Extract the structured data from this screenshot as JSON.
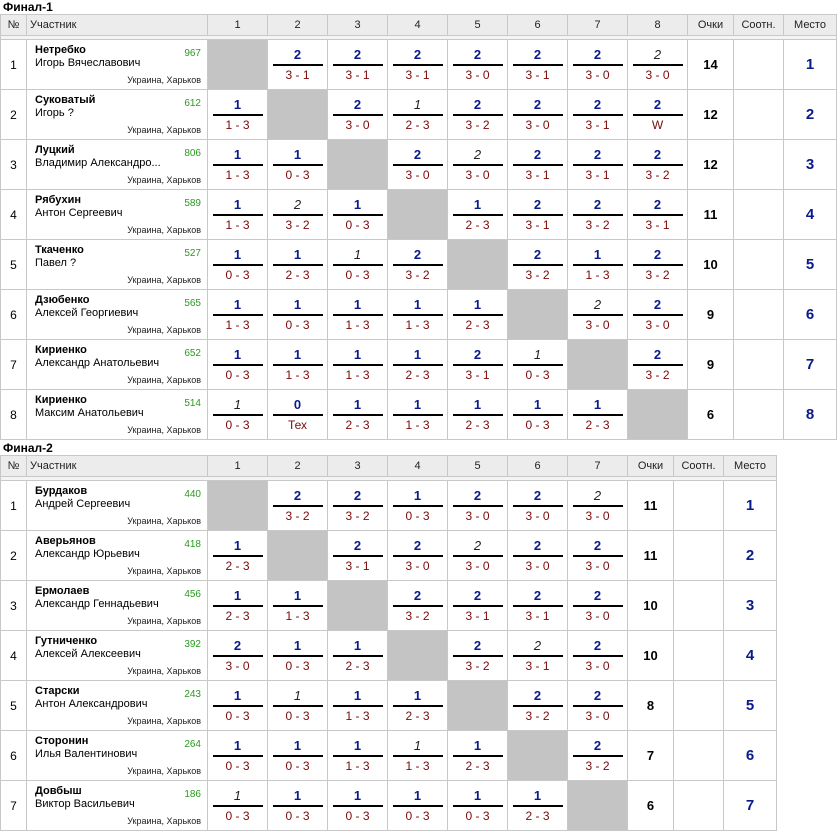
{
  "tables": [
    {
      "title": "Финал-1",
      "headers": {
        "num": "№",
        "player": "Участник",
        "points": "Очки",
        "ratio": "Соотн.",
        "place": "Место",
        "rounds": [
          "1",
          "2",
          "3",
          "4",
          "5",
          "6",
          "7",
          "8"
        ]
      },
      "players": [
        {
          "num": "1",
          "last": "Нетребко",
          "first": "Игорь Вячеславович",
          "rating": "967",
          "city": "Украина, Харьков",
          "points": "14",
          "place": "1",
          "results": [
            null,
            {
              "t": "2",
              "b": "3 - 1"
            },
            {
              "t": "2",
              "b": "3 - 1"
            },
            {
              "t": "2",
              "b": "3 - 1"
            },
            {
              "t": "2",
              "b": "3 - 0"
            },
            {
              "t": "2",
              "b": "3 - 1"
            },
            {
              "t": "2",
              "b": "3 - 0"
            },
            {
              "t": "2",
              "b": "3 - 0",
              "i": true
            }
          ]
        },
        {
          "num": "2",
          "last": "Суковатый",
          "first": "Игорь ?",
          "rating": "612",
          "city": "Украина, Харьков",
          "points": "12",
          "place": "2",
          "results": [
            {
              "t": "1",
              "b": "1 - 3"
            },
            null,
            {
              "t": "2",
              "b": "3 - 0"
            },
            {
              "t": "1",
              "b": "2 - 3",
              "i": true
            },
            {
              "t": "2",
              "b": "3 - 2"
            },
            {
              "t": "2",
              "b": "3 - 0"
            },
            {
              "t": "2",
              "b": "3 - 1"
            },
            {
              "t": "2",
              "b": "W"
            }
          ]
        },
        {
          "num": "3",
          "last": "Луцкий",
          "first": "Владимир Александро...",
          "rating": "806",
          "city": "Украина, Харьков",
          "points": "12",
          "place": "3",
          "results": [
            {
              "t": "1",
              "b": "1 - 3"
            },
            {
              "t": "1",
              "b": "0 - 3"
            },
            null,
            {
              "t": "2",
              "b": "3 - 0"
            },
            {
              "t": "2",
              "b": "3 - 0",
              "i": true
            },
            {
              "t": "2",
              "b": "3 - 1"
            },
            {
              "t": "2",
              "b": "3 - 1"
            },
            {
              "t": "2",
              "b": "3 - 2"
            }
          ]
        },
        {
          "num": "4",
          "last": "Рябухин",
          "first": "Антон Сергеевич",
          "rating": "589",
          "city": "Украина, Харьков",
          "points": "11",
          "place": "4",
          "results": [
            {
              "t": "1",
              "b": "1 - 3"
            },
            {
              "t": "2",
              "b": "3 - 2",
              "i": true
            },
            {
              "t": "1",
              "b": "0 - 3"
            },
            null,
            {
              "t": "1",
              "b": "2 - 3"
            },
            {
              "t": "2",
              "b": "3 - 1"
            },
            {
              "t": "2",
              "b": "3 - 2"
            },
            {
              "t": "2",
              "b": "3 - 1"
            }
          ]
        },
        {
          "num": "5",
          "last": "Ткаченко",
          "first": "Павел ?",
          "rating": "527",
          "city": "Украина, Харьков",
          "points": "10",
          "place": "5",
          "results": [
            {
              "t": "1",
              "b": "0 - 3"
            },
            {
              "t": "1",
              "b": "2 - 3"
            },
            {
              "t": "1",
              "b": "0 - 3",
              "i": true
            },
            {
              "t": "2",
              "b": "3 - 2"
            },
            null,
            {
              "t": "2",
              "b": "3 - 2"
            },
            {
              "t": "1",
              "b": "1 - 3"
            },
            {
              "t": "2",
              "b": "3 - 2"
            }
          ]
        },
        {
          "num": "6",
          "last": "Дзюбенко",
          "first": "Алексей Георгиевич",
          "rating": "565",
          "city": "Украина, Харьков",
          "points": "9",
          "place": "6",
          "results": [
            {
              "t": "1",
              "b": "1 - 3"
            },
            {
              "t": "1",
              "b": "0 - 3"
            },
            {
              "t": "1",
              "b": "1 - 3"
            },
            {
              "t": "1",
              "b": "1 - 3"
            },
            {
              "t": "1",
              "b": "2 - 3"
            },
            null,
            {
              "t": "2",
              "b": "3 - 0",
              "i": true
            },
            {
              "t": "2",
              "b": "3 - 0"
            }
          ]
        },
        {
          "num": "7",
          "last": "Кириенко",
          "first": "Александр Анатольевич",
          "rating": "652",
          "city": "Украина, Харьков",
          "points": "9",
          "place": "7",
          "results": [
            {
              "t": "1",
              "b": "0 - 3"
            },
            {
              "t": "1",
              "b": "1 - 3"
            },
            {
              "t": "1",
              "b": "1 - 3"
            },
            {
              "t": "1",
              "b": "2 - 3"
            },
            {
              "t": "2",
              "b": "3 - 1"
            },
            {
              "t": "1",
              "b": "0 - 3",
              "i": true
            },
            null,
            {
              "t": "2",
              "b": "3 - 2"
            }
          ]
        },
        {
          "num": "8",
          "last": "Кириенко",
          "first": "Максим Анатольевич",
          "rating": "514",
          "city": "Украина, Харьков",
          "points": "6",
          "place": "8",
          "results": [
            {
              "t": "1",
              "b": "0 - 3",
              "i": true
            },
            {
              "t": "0",
              "b": "Тех"
            },
            {
              "t": "1",
              "b": "2 - 3"
            },
            {
              "t": "1",
              "b": "1 - 3"
            },
            {
              "t": "1",
              "b": "2 - 3"
            },
            {
              "t": "1",
              "b": "0 - 3"
            },
            {
              "t": "1",
              "b": "2 - 3"
            },
            null
          ]
        }
      ]
    },
    {
      "title": "Финал-2",
      "headers": {
        "num": "№",
        "player": "Участник",
        "points": "Очки",
        "ratio": "Соотн.",
        "place": "Место",
        "rounds": [
          "1",
          "2",
          "3",
          "4",
          "5",
          "6",
          "7"
        ]
      },
      "players": [
        {
          "num": "1",
          "last": "Бурдаков",
          "first": "Андрей Сергеевич",
          "rating": "440",
          "city": "Украина, Харьков",
          "points": "11",
          "place": "1",
          "results": [
            null,
            {
              "t": "2",
              "b": "3 - 2"
            },
            {
              "t": "2",
              "b": "3 - 2"
            },
            {
              "t": "1",
              "b": "0 - 3"
            },
            {
              "t": "2",
              "b": "3 - 0"
            },
            {
              "t": "2",
              "b": "3 - 0"
            },
            {
              "t": "2",
              "b": "3 - 0",
              "i": true
            }
          ]
        },
        {
          "num": "2",
          "last": "Аверьянов",
          "first": "Александр Юрьевич",
          "rating": "418",
          "city": "Украина, Харьков",
          "points": "11",
          "place": "2",
          "results": [
            {
              "t": "1",
              "b": "2 - 3"
            },
            null,
            {
              "t": "2",
              "b": "3 - 1"
            },
            {
              "t": "2",
              "b": "3 - 0"
            },
            {
              "t": "2",
              "b": "3 - 0",
              "i": true
            },
            {
              "t": "2",
              "b": "3 - 0"
            },
            {
              "t": "2",
              "b": "3 - 0"
            }
          ]
        },
        {
          "num": "3",
          "last": "Ермолаев",
          "first": "Александр Геннадьевич",
          "rating": "456",
          "city": "Украина, Харьков",
          "points": "10",
          "place": "3",
          "results": [
            {
              "t": "1",
              "b": "2 - 3"
            },
            {
              "t": "1",
              "b": "1 - 3"
            },
            null,
            {
              "t": "2",
              "b": "3 - 2"
            },
            {
              "t": "2",
              "b": "3 - 1"
            },
            {
              "t": "2",
              "b": "3 - 1"
            },
            {
              "t": "2",
              "b": "3 - 0"
            }
          ]
        },
        {
          "num": "4",
          "last": "Гутниченко",
          "first": "Алексей Алексеевич",
          "rating": "392",
          "city": "Украина, Харьков",
          "points": "10",
          "place": "4",
          "results": [
            {
              "t": "2",
              "b": "3 - 0"
            },
            {
              "t": "1",
              "b": "0 - 3"
            },
            {
              "t": "1",
              "b": "2 - 3"
            },
            null,
            {
              "t": "2",
              "b": "3 - 2"
            },
            {
              "t": "2",
              "b": "3 - 1",
              "i": true
            },
            {
              "t": "2",
              "b": "3 - 0"
            }
          ]
        },
        {
          "num": "5",
          "last": "Старски",
          "first": "Антон Александрович",
          "rating": "243",
          "city": "Украина, Харьков",
          "points": "8",
          "place": "5",
          "results": [
            {
              "t": "1",
              "b": "0 - 3"
            },
            {
              "t": "1",
              "b": "0 - 3",
              "i": true
            },
            {
              "t": "1",
              "b": "1 - 3"
            },
            {
              "t": "1",
              "b": "2 - 3"
            },
            null,
            {
              "t": "2",
              "b": "3 - 2"
            },
            {
              "t": "2",
              "b": "3 - 0"
            }
          ]
        },
        {
          "num": "6",
          "last": "Сторонин",
          "first": "Илья Валентинович",
          "rating": "264",
          "city": "Украина, Харьков",
          "points": "7",
          "place": "6",
          "results": [
            {
              "t": "1",
              "b": "0 - 3"
            },
            {
              "t": "1",
              "b": "0 - 3"
            },
            {
              "t": "1",
              "b": "1 - 3"
            },
            {
              "t": "1",
              "b": "1 - 3",
              "i": true
            },
            {
              "t": "1",
              "b": "2 - 3"
            },
            null,
            {
              "t": "2",
              "b": "3 - 2"
            }
          ]
        },
        {
          "num": "7",
          "last": "Довбыш",
          "first": "Виктор Васильевич",
          "rating": "186",
          "city": "Украина, Харьков",
          "points": "6",
          "place": "7",
          "results": [
            {
              "t": "1",
              "b": "0 - 3",
              "i": true
            },
            {
              "t": "1",
              "b": "0 - 3"
            },
            {
              "t": "1",
              "b": "0 - 3"
            },
            {
              "t": "1",
              "b": "0 - 3"
            },
            {
              "t": "1",
              "b": "0 - 3"
            },
            {
              "t": "1",
              "b": "2 - 3"
            },
            null
          ]
        }
      ]
    }
  ]
}
